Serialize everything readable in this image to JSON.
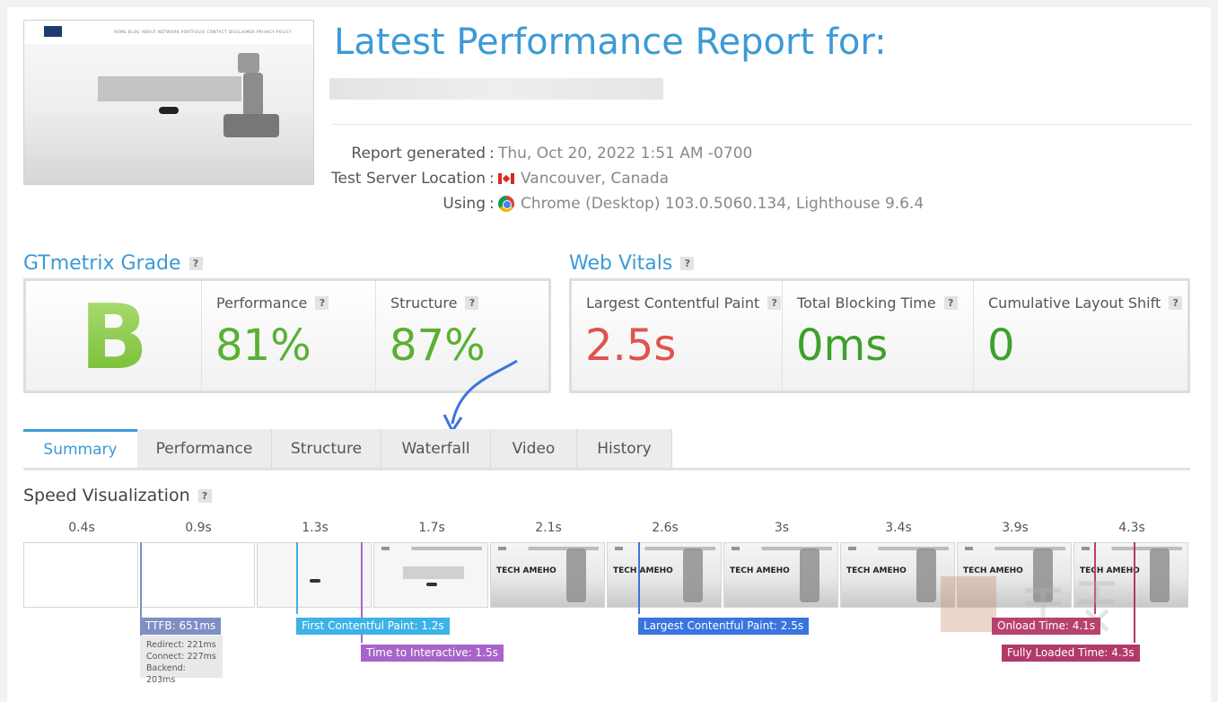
{
  "report": {
    "title": "Latest Performance Report for:",
    "meta": [
      {
        "label": "Report generated",
        "value": "Thu, Oct 20, 2022 1:51 AM -0700"
      },
      {
        "label": "Test Server Location",
        "value": "Vancouver, Canada"
      },
      {
        "label": "Using",
        "value": "Chrome (Desktop) 103.0.5060.134, Lighthouse 9.6.4"
      }
    ]
  },
  "thumbnail": {
    "nav_links": "HOME  BLOG  ABOUT  NETWORK  PORTFOLIO  CONTACT  DISCLAIMER  PRIVACY POLICY"
  },
  "grade": {
    "heading": "GTmetrix Grade",
    "letter": "B",
    "performance_label": "Performance",
    "performance_value": "81%",
    "structure_label": "Structure",
    "structure_value": "87%"
  },
  "vitals": {
    "heading": "Web Vitals",
    "lcp_label": "Largest Contentful Paint",
    "lcp_value": "2.5s",
    "tbt_label": "Total Blocking Time",
    "tbt_value": "0ms",
    "cls_label": "Cumulative Layout Shift",
    "cls_value": "0"
  },
  "tabs": [
    "Summary",
    "Performance",
    "Structure",
    "Waterfall",
    "Video",
    "History"
  ],
  "speed": {
    "heading": "Speed Visualization",
    "times": [
      "0.4s",
      "0.9s",
      "1.3s",
      "1.7s",
      "2.1s",
      "2.6s",
      "3s",
      "3.4s",
      "3.9s",
      "4.3s"
    ],
    "brand_text": "TECH AMEHO",
    "markers": {
      "ttfb": "TTFB: 651ms",
      "fcp": "First Contentful Paint: 1.2s",
      "tti": "Time to Interactive: 1.5s",
      "lcp": "Largest Contentful Paint: 2.5s",
      "onload": "Onload Time: 4.1s",
      "fully_loaded": "Fully Loaded Time: 4.3s"
    },
    "ttfb_breakdown": [
      "Redirect: 221ms",
      "Connect: 227ms",
      "Backend: 203ms"
    ]
  },
  "help_icon": "?",
  "colors": {
    "accent": "#3c9ad6",
    "good": "#5bb033",
    "bad": "#e0534e",
    "ttfb": "#7f8fc4",
    "fcp": "#3cb3e8",
    "tti": "#a865c9",
    "lcp": "#3a74de",
    "onload": "#b7426e",
    "fully_loaded": "#b13a69"
  }
}
